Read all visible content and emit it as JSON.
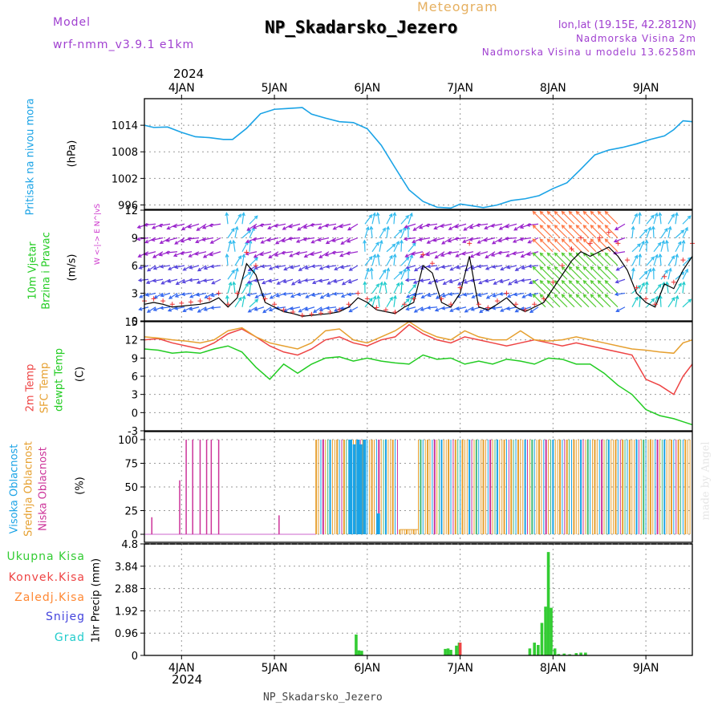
{
  "header": {
    "title": "Meteogram",
    "station": "NP_Skadarsko_Jezero",
    "model_label": "Model",
    "model_name": "wrf-nmm_v3.9.1 e1km",
    "location": "lon,lat (19.15E, 42.2812N)",
    "elevation": "Nadmorska Visina 2m",
    "model_elevation": "Nadmorska Visina u modelu 13.6258m",
    "year": "2024",
    "footer_station": "NP_Skadarsko_Jezero",
    "credit": "made by Angel"
  },
  "colors": {
    "pressure": "#1aa3e6",
    "wind_label": "#22cc22",
    "wind_unit": "#cc33cc",
    "temp_2m": "#ee4444",
    "temp_sfc": "#e6a030",
    "temp_dew": "#22cc22",
    "cloud_high": "#1aa3e6",
    "cloud_mid": "#e6a030",
    "cloud_low": "#cc3399",
    "precip_total": "#33cc33",
    "precip_conv": "#ee4444",
    "precip_strat": "#ff8833",
    "snow": "#4444dd",
    "hail": "#22cccc",
    "title": "#e6b060",
    "purple": "#a040d0"
  },
  "chart_data": [
    {
      "type": "line",
      "panel": "pressure",
      "ylabel_lines": [
        "Pritisak na nivou mora",
        "(hPa)"
      ],
      "yticks": [
        "1014",
        "1008",
        "1002",
        "996"
      ],
      "ylim": [
        995,
        1020
      ],
      "x_unit": "days since 2024-01-03 00:00 UTC (axis labels are dates)",
      "x_range": [
        3.6,
        9.5
      ],
      "series": [
        {
          "name": "Pritisak na nivou mora",
          "x": [
            3.6,
            3.7,
            3.85,
            4.0,
            4.15,
            4.3,
            4.45,
            4.55,
            4.7,
            4.85,
            5.0,
            5.15,
            5.3,
            5.4,
            5.55,
            5.7,
            5.85,
            6.0,
            6.15,
            6.3,
            6.45,
            6.6,
            6.75,
            6.9,
            7.0,
            7.1,
            7.25,
            7.4,
            7.55,
            7.7,
            7.85,
            8.0,
            8.15,
            8.3,
            8.45,
            8.6,
            8.75,
            8.9,
            9.05,
            9.2,
            9.3,
            9.4,
            9.5
          ],
          "values": [
            1014,
            1013.5,
            1013.6,
            1012.4,
            1011.4,
            1011.2,
            1010.8,
            1010.8,
            1013.3,
            1016.6,
            1017.6,
            1017.8,
            1018.0,
            1016.5,
            1015.6,
            1014.8,
            1014.6,
            1013.2,
            1009.5,
            1004.4,
            999.4,
            996.8,
            995.5,
            995.3,
            996.2,
            995.9,
            995.4,
            996.0,
            997.0,
            997.4,
            998.1,
            999.7,
            1001.0,
            1004.1,
            1007.3,
            1008.4,
            1009.0,
            1009.8,
            1010.8,
            1011.6,
            1013.0,
            1015.0,
            1014.8
          ]
        }
      ]
    },
    {
      "type": "line",
      "panel": "wind",
      "ylabel_lines": [
        "10m Vjetar",
        "Brzina i Pravac",
        "(m/s)"
      ],
      "compass_label": "W <-|-> E  N^|vS",
      "yticks": [
        "12",
        "9",
        "6",
        "3",
        "0"
      ],
      "ylim": [
        0,
        12
      ],
      "series": [
        {
          "name": "Brzina",
          "x": [
            3.6,
            3.7,
            3.8,
            3.9,
            4.0,
            4.1,
            4.2,
            4.3,
            4.4,
            4.5,
            4.6,
            4.7,
            4.8,
            4.9,
            5.0,
            5.1,
            5.2,
            5.3,
            5.4,
            5.5,
            5.6,
            5.7,
            5.8,
            5.9,
            6.0,
            6.1,
            6.2,
            6.3,
            6.4,
            6.5,
            6.6,
            6.7,
            6.8,
            6.9,
            7.0,
            7.1,
            7.2,
            7.3,
            7.4,
            7.5,
            7.6,
            7.7,
            7.8,
            7.9,
            8.0,
            8.1,
            8.2,
            8.3,
            8.4,
            8.5,
            8.6,
            8.7,
            8.8,
            8.9,
            9.0,
            9.1,
            9.2,
            9.3,
            9.4,
            9.5
          ],
          "values": [
            1.8,
            2.0,
            1.8,
            1.5,
            1.6,
            1.7,
            1.8,
            2.0,
            2.5,
            1.5,
            2.5,
            6.2,
            5.0,
            2.0,
            1.5,
            1.0,
            0.8,
            0.5,
            0.6,
            0.7,
            0.8,
            1.0,
            1.5,
            2.5,
            2.0,
            1.2,
            1.0,
            0.8,
            1.5,
            2.0,
            6.0,
            5.2,
            2.0,
            1.5,
            3.0,
            7.0,
            1.5,
            1.2,
            1.8,
            2.5,
            1.5,
            1.0,
            1.5,
            2.0,
            3.5,
            5.0,
            6.5,
            7.5,
            7.0,
            7.5,
            8.0,
            7.0,
            5.5,
            3.0,
            2.0,
            1.5,
            4.0,
            3.5,
            5.5,
            7.0
          ]
        }
      ]
    },
    {
      "type": "line",
      "panel": "temperature",
      "ylabel_lines": [
        "2m Temp",
        "SFC Temp",
        "dewpt Temp",
        "(C)"
      ],
      "yticks": [
        "15",
        "12",
        "9",
        "6",
        "3",
        "0",
        "-3"
      ],
      "ylim": [
        -3,
        15
      ],
      "series": [
        {
          "name": "2m Temp",
          "x": [
            3.6,
            3.75,
            3.9,
            4.05,
            4.2,
            4.35,
            4.5,
            4.65,
            4.8,
            4.95,
            5.1,
            5.25,
            5.4,
            5.55,
            5.7,
            5.85,
            6.0,
            6.15,
            6.3,
            6.45,
            6.6,
            6.75,
            6.9,
            7.05,
            7.2,
            7.35,
            7.5,
            7.65,
            7.8,
            7.95,
            8.1,
            8.25,
            8.4,
            8.55,
            8.7,
            8.85,
            9.0,
            9.15,
            9.3,
            9.4,
            9.5
          ],
          "values": [
            12.0,
            12.2,
            11.5,
            11.0,
            10.5,
            11.5,
            13.0,
            13.8,
            12.5,
            11.0,
            10.0,
            9.5,
            10.5,
            12.0,
            12.5,
            11.5,
            11.0,
            12.0,
            12.5,
            14.5,
            13.0,
            12.0,
            11.5,
            12.5,
            12.0,
            11.5,
            11.0,
            11.5,
            12.0,
            11.5,
            11.0,
            11.5,
            11.0,
            10.5,
            10.0,
            9.5,
            5.5,
            4.5,
            3.0,
            6.0,
            8.0
          ]
        },
        {
          "name": "SFC Temp",
          "x": [
            3.6,
            3.75,
            3.9,
            4.05,
            4.2,
            4.35,
            4.5,
            4.65,
            4.8,
            4.95,
            5.1,
            5.25,
            5.4,
            5.55,
            5.7,
            5.85,
            6.0,
            6.15,
            6.3,
            6.45,
            6.6,
            6.75,
            6.9,
            7.05,
            7.2,
            7.35,
            7.5,
            7.65,
            7.8,
            7.95,
            8.1,
            8.25,
            8.4,
            8.55,
            8.7,
            8.85,
            9.0,
            9.15,
            9.3,
            9.4,
            9.5
          ],
          "values": [
            12.5,
            12.3,
            12.0,
            11.8,
            11.5,
            12.0,
            13.5,
            14.0,
            12.5,
            11.5,
            11.0,
            10.5,
            11.5,
            13.5,
            13.8,
            12.0,
            11.5,
            12.5,
            13.5,
            15.0,
            13.5,
            12.5,
            12.0,
            13.5,
            12.5,
            12.0,
            12.0,
            13.5,
            12.0,
            11.8,
            12.0,
            12.5,
            12.0,
            11.5,
            11.0,
            10.5,
            10.3,
            10.0,
            9.8,
            11.5,
            12.0
          ]
        },
        {
          "name": "dewpt Temp",
          "x": [
            3.6,
            3.75,
            3.9,
            4.05,
            4.2,
            4.35,
            4.5,
            4.65,
            4.8,
            4.95,
            5.1,
            5.25,
            5.4,
            5.55,
            5.7,
            5.85,
            6.0,
            6.15,
            6.3,
            6.45,
            6.6,
            6.75,
            6.9,
            7.05,
            7.2,
            7.35,
            7.5,
            7.65,
            7.8,
            7.95,
            8.1,
            8.25,
            8.4,
            8.55,
            8.7,
            8.85,
            9.0,
            9.15,
            9.3,
            9.4,
            9.5
          ],
          "values": [
            10.5,
            10.3,
            9.8,
            10.0,
            9.8,
            10.5,
            11.0,
            10.0,
            7.5,
            5.5,
            8.0,
            6.5,
            8.0,
            9.0,
            9.2,
            8.5,
            9.0,
            8.5,
            8.2,
            8.0,
            9.5,
            8.8,
            9.0,
            8.0,
            8.5,
            8.0,
            8.8,
            8.5,
            8.0,
            9.0,
            8.8,
            8.0,
            8.0,
            6.5,
            4.5,
            3.0,
            0.5,
            -0.5,
            -1.0,
            -1.5,
            -2.0
          ]
        }
      ]
    },
    {
      "type": "bar",
      "panel": "clouds",
      "ylabel_lines": [
        "Visoka Oblacnost",
        "Srednja Oblacnost",
        "Niska Oblacnost",
        "(%)"
      ],
      "yticks": [
        "100",
        "75",
        "50",
        "25",
        "0"
      ],
      "ylim": [
        0,
        100
      ],
      "low_cloud": {
        "x": [
          3.68,
          3.98,
          4.05,
          4.12,
          4.2,
          4.27,
          4.32,
          4.4,
          5.05
        ],
        "values": [
          18,
          57,
          100,
          100,
          100,
          100,
          100,
          100,
          20
        ]
      },
      "high_cloud": {
        "x": [
          5.82,
          5.86,
          5.9,
          5.93,
          5.97,
          6.12
        ],
        "values": [
          100,
          95,
          100,
          95,
          100,
          22
        ]
      },
      "overcast_band": {
        "x_start": 5.45,
        "x_end": 9.5,
        "value": 100,
        "gaps": [
          [
            6.35,
            6.55
          ]
        ]
      }
    },
    {
      "type": "bar",
      "panel": "precipitation",
      "ylabel_lines": [
        "1hr Precip (mm)"
      ],
      "legend": [
        "Ukupna Kisa",
        "Konvek.Kisa",
        "Zaledj.Kisa",
        "Snijeg",
        "Grad"
      ],
      "yticks": [
        "4.8",
        "3.84",
        "2.88",
        "1.92",
        "0.96",
        "0"
      ],
      "ylim": [
        0,
        4.8
      ],
      "series": [
        {
          "name": "Ukupna Kisa",
          "x": [
            5.88,
            5.91,
            5.94,
            6.84,
            6.87,
            6.9,
            6.96,
            6.99,
            7.75,
            7.8,
            7.84,
            7.88,
            7.92,
            7.95,
            7.98,
            8.02,
            8.06,
            8.12,
            8.18,
            8.25,
            8.3,
            8.35
          ],
          "values": [
            0.9,
            0.22,
            0.2,
            0.28,
            0.3,
            0.24,
            0.42,
            0.55,
            0.3,
            0.55,
            0.45,
            1.4,
            2.1,
            4.45,
            2.05,
            0.3,
            0.06,
            0.08,
            0.05,
            0.1,
            0.12,
            0.12
          ]
        },
        {
          "name": "Konvek.Kisa",
          "x": [
            7.0
          ],
          "values": [
            0.55
          ]
        }
      ]
    }
  ],
  "x_axis": {
    "ticks": [
      {
        "day": 4,
        "label": "4JAN"
      },
      {
        "day": 5,
        "label": "5JAN"
      },
      {
        "day": 6,
        "label": "6JAN"
      },
      {
        "day": 7,
        "label": "7JAN"
      },
      {
        "day": 8,
        "label": "8JAN"
      },
      {
        "day": 9,
        "label": "9JAN"
      }
    ]
  }
}
